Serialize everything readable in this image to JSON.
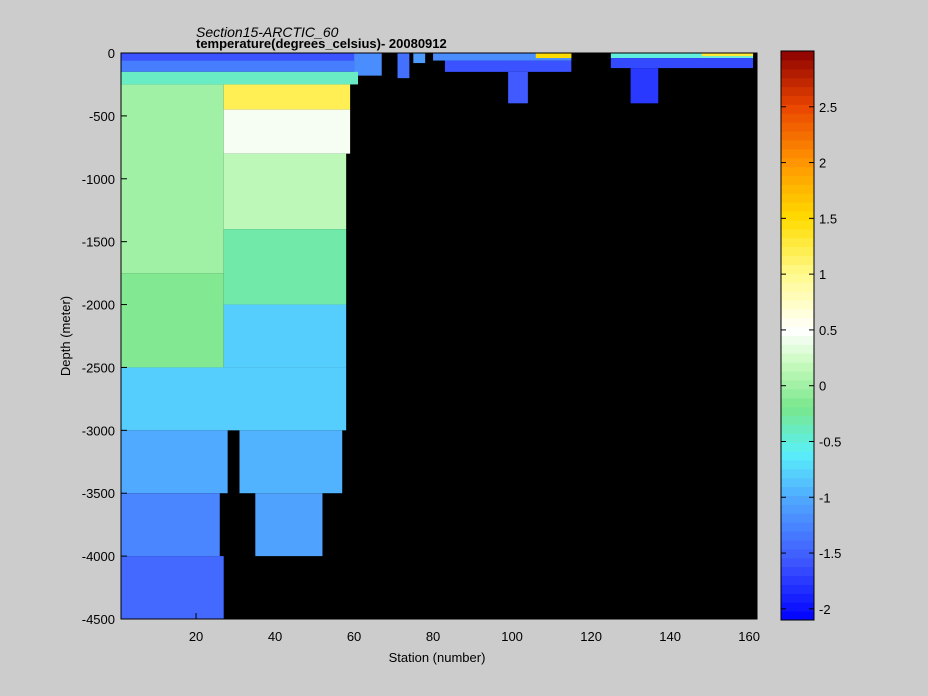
{
  "chart_data": {
    "type": "heatmap",
    "title": "Section15-ARCTIC_60",
    "subtitle": "temperature(degrees_celsius)- 20080912",
    "xlabel": "Station (number)",
    "ylabel": "Depth (meter)",
    "xlim": [
      1,
      162
    ],
    "ylim": [
      -4500,
      0
    ],
    "xticks": [
      "20",
      "40",
      "60",
      "80",
      "100",
      "120",
      "140",
      "160"
    ],
    "yticks": [
      "0",
      "-500",
      "-1000",
      "-1500",
      "-2000",
      "-2500",
      "-3000",
      "-3500",
      "-4000",
      "-4500"
    ],
    "colorbar": {
      "range": [
        -2.1,
        3.0
      ],
      "ticks": [
        "2.5",
        "2",
        "1.5",
        "1",
        "0.5",
        "0",
        "-0.5",
        "-1",
        "-1.5",
        "-2"
      ],
      "colormap": "jet-with-white-center"
    },
    "background_color": "#000000",
    "cells": [
      {
        "x0": 1,
        "x1": 60,
        "y0": 0,
        "y1": -60,
        "t": -1.6
      },
      {
        "x0": 1,
        "x1": 60,
        "y0": -60,
        "y1": -150,
        "t": -1.3
      },
      {
        "x0": 60,
        "x1": 67,
        "y0": 0,
        "y1": -180,
        "t": -1.2
      },
      {
        "x0": 1,
        "x1": 61,
        "y0": -150,
        "y1": -250,
        "t": -0.4
      },
      {
        "x0": 1,
        "x1": 27,
        "y0": -250,
        "y1": -1750,
        "t": 0.0
      },
      {
        "x0": 27,
        "x1": 59,
        "y0": -250,
        "y1": -450,
        "t": 1.2
      },
      {
        "x0": 27,
        "x1": 59,
        "y0": -450,
        "y1": -800,
        "t": 0.45
      },
      {
        "x0": 27,
        "x1": 58,
        "y0": -800,
        "y1": -1400,
        "t": 0.15
      },
      {
        "x0": 27,
        "x1": 58,
        "y0": -1400,
        "y1": -2000,
        "t": -0.3
      },
      {
        "x0": 1,
        "x1": 27,
        "y0": -1750,
        "y1": -2500,
        "t": -0.15
      },
      {
        "x0": 27,
        "x1": 58,
        "y0": -2000,
        "y1": -2500,
        "t": -0.8
      },
      {
        "x0": 1,
        "x1": 58,
        "y0": -2500,
        "y1": -3000,
        "t": -0.8
      },
      {
        "x0": 1,
        "x1": 28,
        "y0": -3000,
        "y1": -3500,
        "t": -1.0
      },
      {
        "x0": 31,
        "x1": 57,
        "y0": -3000,
        "y1": -3500,
        "t": -0.95
      },
      {
        "x0": 1,
        "x1": 26,
        "y0": -3500,
        "y1": -4000,
        "t": -1.25
      },
      {
        "x0": 35,
        "x1": 52,
        "y0": -3500,
        "y1": -4000,
        "t": -1.05
      },
      {
        "x0": 1,
        "x1": 27,
        "y0": -4000,
        "y1": -4500,
        "t": -1.45
      },
      {
        "x0": 71,
        "x1": 74,
        "y0": 0,
        "y1": -200,
        "t": -1.4
      },
      {
        "x0": 75,
        "x1": 78,
        "y0": 0,
        "y1": -80,
        "t": -1.1
      },
      {
        "x0": 80,
        "x1": 115,
        "y0": 0,
        "y1": -60,
        "t": -1.2
      },
      {
        "x0": 83,
        "x1": 115,
        "y0": -60,
        "y1": -150,
        "t": -1.6
      },
      {
        "x0": 99,
        "x1": 104,
        "y0": -150,
        "y1": -400,
        "t": -1.55
      },
      {
        "x0": 106,
        "x1": 115,
        "y0": 0,
        "y1": -40,
        "t": 1.5
      },
      {
        "x0": 125,
        "x1": 161,
        "y0": 0,
        "y1": -40,
        "t": -0.5
      },
      {
        "x0": 125,
        "x1": 161,
        "y0": -40,
        "y1": -120,
        "t": -1.65
      },
      {
        "x0": 130,
        "x1": 137,
        "y0": -120,
        "y1": -400,
        "t": -1.75
      },
      {
        "x0": 148,
        "x1": 161,
        "y0": 0,
        "y1": -25,
        "t": 1.3
      }
    ]
  }
}
